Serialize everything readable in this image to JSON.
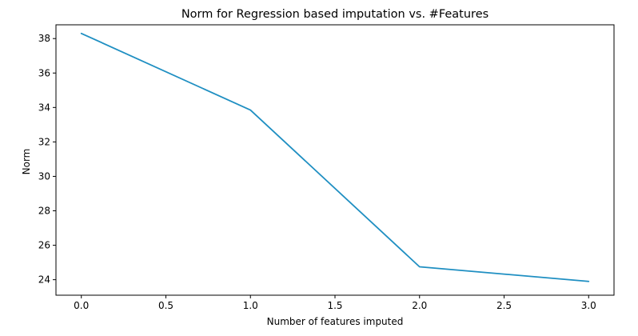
{
  "chart_data": {
    "type": "line",
    "title": "Norm for Regression based imputation vs. #Features",
    "xlabel": "Number of features imputed",
    "ylabel": "Norm",
    "xlim": [
      -0.15,
      3.15
    ],
    "ylim": [
      23.1,
      38.8
    ],
    "x_ticks": [
      0.0,
      0.5,
      1.0,
      1.5,
      2.0,
      2.5,
      3.0
    ],
    "x_tick_labels": [
      "0.0",
      "0.5",
      "1.0",
      "1.5",
      "2.0",
      "2.5",
      "3.0"
    ],
    "y_ticks": [
      24,
      26,
      28,
      30,
      32,
      34,
      36,
      38
    ],
    "y_tick_labels": [
      "24",
      "26",
      "28",
      "30",
      "32",
      "34",
      "36",
      "38"
    ],
    "grid": false,
    "series": [
      {
        "x": [
          0,
          1,
          2,
          3
        ],
        "values": [
          38.3,
          33.85,
          24.75,
          23.9
        ],
        "color": "#1f8fc2"
      }
    ]
  }
}
